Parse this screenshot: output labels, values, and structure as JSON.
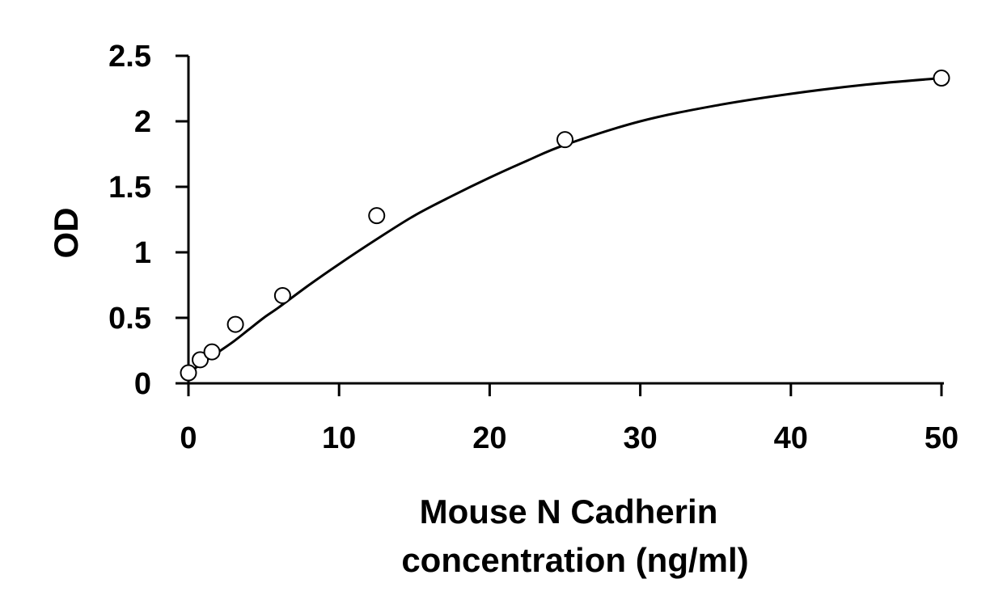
{
  "chart_data": {
    "type": "scatter",
    "title": "",
    "xlabel": [
      "Mouse N Cadherin",
      "concentration (ng/ml)"
    ],
    "ylabel": "OD",
    "xlim": [
      0,
      50
    ],
    "ylim": [
      0,
      2.5
    ],
    "x_ticks": [
      "0",
      "10",
      "20",
      "30",
      "40",
      "50"
    ],
    "y_ticks": [
      "0",
      "0.5",
      "1",
      "1.5",
      "2",
      "2.5"
    ],
    "grid": false,
    "legend": "none",
    "marker": "open-circle",
    "series": [
      {
        "x": [
          0,
          0.78,
          1.56,
          3.12,
          6.25,
          12.5,
          25,
          50
        ],
        "y": [
          0.08,
          0.18,
          0.24,
          0.45,
          0.67,
          1.28,
          1.86,
          2.33
        ]
      }
    ],
    "fit_curve": {
      "x": [
        0,
        1,
        2,
        3,
        4,
        5,
        6,
        8,
        10,
        12.5,
        15,
        17.5,
        20,
        22.5,
        25,
        30,
        35,
        40,
        45,
        50
      ],
      "y": [
        0.08,
        0.16,
        0.24,
        0.32,
        0.41,
        0.5,
        0.58,
        0.75,
        0.91,
        1.1,
        1.28,
        1.43,
        1.57,
        1.7,
        1.82,
        2.0,
        2.12,
        2.21,
        2.28,
        2.33
      ]
    },
    "colors": {
      "axis": "#000000",
      "marker": "#000000",
      "line": "#000000"
    }
  }
}
